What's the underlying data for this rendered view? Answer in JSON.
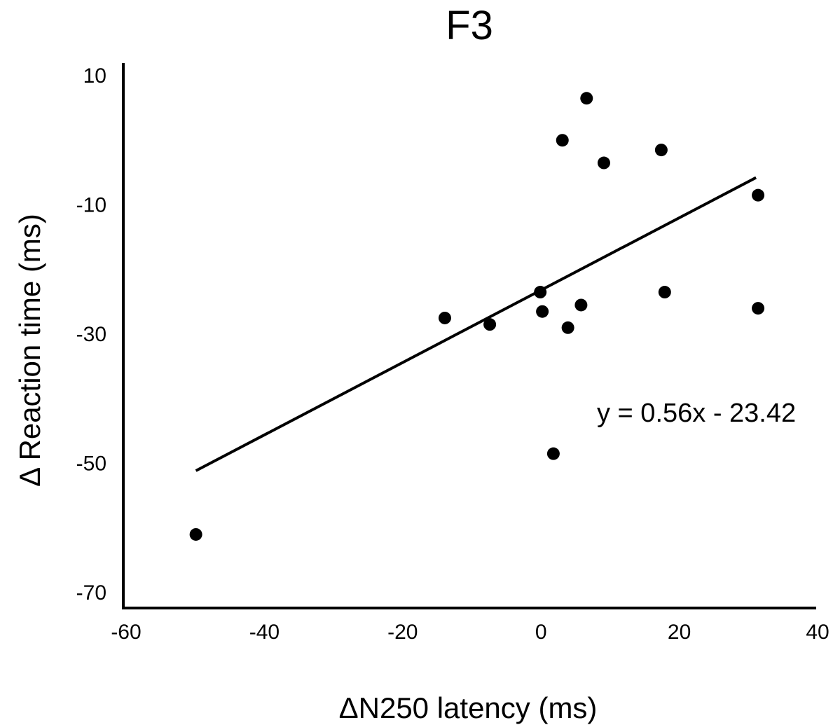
{
  "chart_data": {
    "type": "scatter",
    "title": "F3",
    "xlabel": "ΔN250 latency (ms)",
    "ylabel": "Δ Reaction time (ms)",
    "xlim": [
      -60,
      40
    ],
    "ylim": [
      -70,
      10
    ],
    "xticks": [
      -60,
      -40,
      -20,
      0,
      20,
      40
    ],
    "yticks": [
      10,
      -10,
      -30,
      -50,
      -70
    ],
    "grid": false,
    "points": [
      {
        "x": -49.5,
        "y": -61.0
      },
      {
        "x": -13.5,
        "y": -27.5
      },
      {
        "x": -7.0,
        "y": -28.5
      },
      {
        "x": 0.3,
        "y": -23.5
      },
      {
        "x": 0.6,
        "y": -26.5
      },
      {
        "x": 2.2,
        "y": -48.5
      },
      {
        "x": 3.5,
        "y": 0.0
      },
      {
        "x": 4.3,
        "y": -29.0
      },
      {
        "x": 6.2,
        "y": -25.5
      },
      {
        "x": 7.0,
        "y": 6.5
      },
      {
        "x": 9.5,
        "y": -3.5
      },
      {
        "x": 17.8,
        "y": -1.5
      },
      {
        "x": 18.3,
        "y": -23.5
      },
      {
        "x": 31.8,
        "y": -8.5
      },
      {
        "x": 31.8,
        "y": -26.0
      }
    ],
    "trendline": {
      "slope": 0.56,
      "intercept": -23.42,
      "x_range": [
        -49.5,
        31.5
      ]
    },
    "annotation": "y = 0.56x - 23.42",
    "colors": {
      "points": "#000000",
      "line": "#000000",
      "axes": "#000000"
    }
  }
}
